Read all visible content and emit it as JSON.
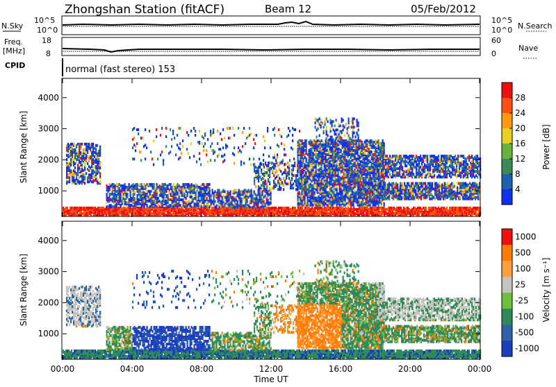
{
  "header": {
    "station": "Zhongshan Station (fitACF)",
    "beam": "Beam 12",
    "date": "05/Feb/2012"
  },
  "noise_panel": {
    "left_label": "N.Sky",
    "right_label": "N.Search",
    "left_ticks": [
      "10^5",
      "10^0"
    ],
    "right_ticks": [
      "10^5",
      "10^0"
    ]
  },
  "freq_panel": {
    "left_label_1": "Freq.",
    "left_label_2": "[MHz]",
    "right_label": "Nave",
    "left_ticks": [
      "18",
      "8"
    ],
    "right_ticks": [
      "60",
      "0"
    ]
  },
  "cpid": {
    "label": "CPID",
    "mode": "normal (fast stereo) 153"
  },
  "x_axis": {
    "label": "Time UT",
    "ticks": [
      "00:00",
      "04:00",
      "08:00",
      "12:00",
      "16:00",
      "20:00",
      "00:00"
    ]
  },
  "chart_data": [
    {
      "type": "heatmap",
      "panel": "power",
      "ylabel": "Slant Range [km]",
      "y_ticks": [
        "1000",
        "2000",
        "3000",
        "4000"
      ],
      "ylim": [
        180,
        4620
      ],
      "xlim_hours": [
        0,
        24
      ],
      "colorbar_label": "Power [dB]",
      "colorbar_ticks": [
        "4",
        "8",
        "12",
        "16",
        "20",
        "24",
        "28"
      ],
      "colorbar_colors": [
        "#1030f0",
        "#2060b0",
        "#3c8a5a",
        "#66b340",
        "#e8d020",
        "#ff9a10",
        "#ff5010",
        "#f01010"
      ]
    },
    {
      "type": "heatmap",
      "panel": "velocity",
      "ylabel": "Slant Range [km]",
      "y_ticks": [
        "1000",
        "2000",
        "3000",
        "4000"
      ],
      "ylim": [
        180,
        4620
      ],
      "xlim_hours": [
        0,
        24
      ],
      "colorbar_label": "Velocity [m s⁻¹]",
      "colorbar_ticks": [
        "1000",
        "500",
        "100",
        "25",
        "-25",
        "-100",
        "-500",
        "-1000"
      ],
      "colorbar_colors": [
        "#1c3fc0",
        "#2f63a6",
        "#2f8a57",
        "#6bbf3c",
        "#c4c4bc",
        "#ffa040",
        "#ff7a00",
        "#f01010"
      ]
    }
  ]
}
